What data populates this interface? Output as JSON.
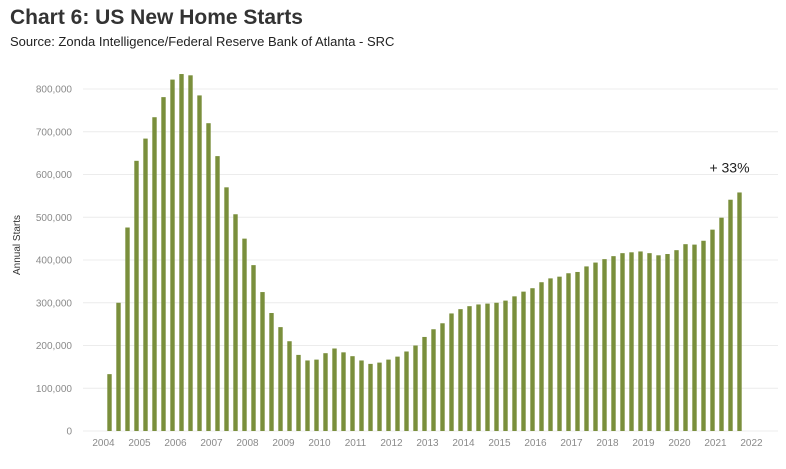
{
  "chart_data": {
    "type": "bar",
    "title": "Chart 6: US New Home Starts",
    "subtitle": "Source: Zonda Intelligence/Federal Reserve Bank of Atlanta - SRC",
    "ylabel": "Annual Starts",
    "xlabel": "",
    "ylim": [
      0,
      850000
    ],
    "yticks": [
      "0",
      "100,000",
      "200,000",
      "300,000",
      "400,000",
      "500,000",
      "600,000",
      "700,000",
      "800,000"
    ],
    "xticks": [
      "2004",
      "2005",
      "2006",
      "2007",
      "2008",
      "2009",
      "2010",
      "2011",
      "2012",
      "2013",
      "2014",
      "2015",
      "2016",
      "2017",
      "2018",
      "2019",
      "2020",
      "2021",
      "2022"
    ],
    "x_start_year": 2004,
    "grid": true,
    "bar_color": "#7a8f3c",
    "annotation": "+ 33%",
    "values": [
      133000,
      300000,
      476000,
      632000,
      684000,
      734000,
      781000,
      822000,
      835000,
      832000,
      785000,
      720000,
      643000,
      570000,
      507000,
      450000,
      388000,
      325000,
      276000,
      243000,
      210000,
      178000,
      165000,
      167000,
      182000,
      193000,
      184000,
      175000,
      165000,
      157000,
      160000,
      167000,
      174000,
      186000,
      200000,
      220000,
      238000,
      252000,
      275000,
      285000,
      292000,
      296000,
      298000,
      300000,
      305000,
      315000,
      326000,
      334000,
      348000,
      357000,
      361000,
      369000,
      372000,
      385000,
      394000,
      402000,
      409000,
      416000,
      418000,
      420000,
      416000,
      411000,
      414000,
      423000,
      437000,
      436000,
      445000,
      471000,
      499000,
      541000,
      558000
    ]
  }
}
